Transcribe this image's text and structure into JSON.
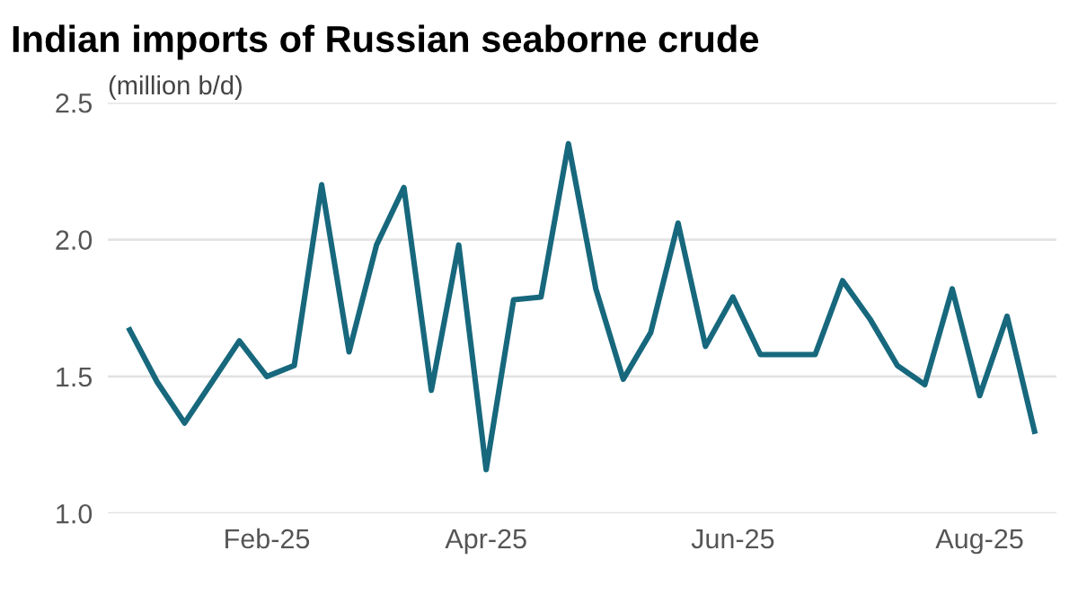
{
  "chart_data": {
    "type": "line",
    "title": "Indian imports of Russian seaborne crude",
    "ylabel": "(million b/d)",
    "categories": [
      null,
      null,
      null,
      null,
      null,
      "Feb-25",
      null,
      null,
      null,
      null,
      null,
      null,
      null,
      "Apr-25",
      null,
      null,
      null,
      null,
      null,
      null,
      null,
      null,
      "Jun-25",
      null,
      null,
      null,
      null,
      null,
      null,
      null,
      null,
      "Aug-25",
      null,
      null
    ],
    "series": [
      {
        "color": "#17687d",
        "values": [
          1.67,
          1.48,
          1.33,
          1.48,
          1.63,
          1.5,
          1.54,
          2.2,
          1.59,
          1.98,
          2.19,
          1.45,
          1.98,
          1.16,
          1.78,
          1.79,
          2.35,
          1.82,
          1.49,
          1.66,
          2.06,
          1.61,
          1.79,
          1.58,
          1.58,
          1.58,
          1.85,
          1.71,
          1.54,
          1.47,
          1.82,
          1.43,
          1.72,
          1.3
        ]
      }
    ],
    "ylim": [
      1.0,
      2.5
    ],
    "yticks": [
      {
        "value": 1.0,
        "label": "1.0"
      },
      {
        "value": 1.5,
        "label": "1.5"
      },
      {
        "value": 2.0,
        "label": "2.0"
      },
      {
        "value": 2.5,
        "label": "2.5"
      }
    ],
    "grid": "y",
    "legend": false,
    "marker": "none",
    "line_style": "solid"
  }
}
